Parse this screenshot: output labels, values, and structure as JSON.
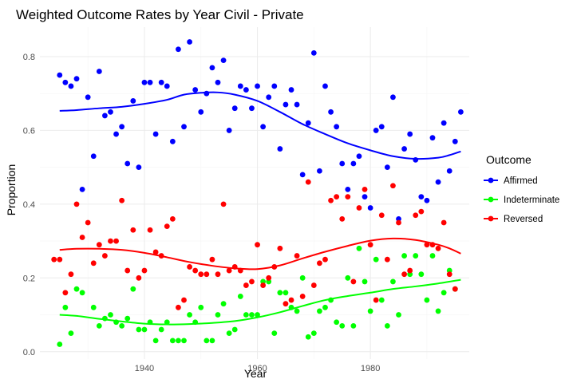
{
  "chart_data": {
    "type": "scatter",
    "title": "Weighted Outcome Rates by Year Civil - Private",
    "xlabel": "Year",
    "ylabel": "Proportion",
    "xlim": [
      1921.5,
      1997.5
    ],
    "ylim": [
      -0.02,
      0.88
    ],
    "x_ticks": [
      1940,
      1960,
      1980
    ],
    "x_tick_labels": [
      "1940",
      "1960",
      "1980"
    ],
    "y_ticks": [
      0.0,
      0.2,
      0.4,
      0.6,
      0.8
    ],
    "y_tick_labels": [
      "0.0",
      "0.2",
      "0.4",
      "0.6",
      "0.8"
    ],
    "grid": true,
    "legend": {
      "title": "Outcome",
      "position": "right"
    },
    "series": [
      {
        "name": "Affirmed",
        "color": "#0000ff",
        "points": [
          [
            1925,
            0.75
          ],
          [
            1926,
            0.73
          ],
          [
            1927,
            0.72
          ],
          [
            1928,
            0.74
          ],
          [
            1929,
            0.44
          ],
          [
            1930,
            0.69
          ],
          [
            1931,
            0.53
          ],
          [
            1932,
            0.76
          ],
          [
            1933,
            0.64
          ],
          [
            1934,
            0.65
          ],
          [
            1935,
            0.59
          ],
          [
            1936,
            0.61
          ],
          [
            1937,
            0.51
          ],
          [
            1938,
            0.68
          ],
          [
            1939,
            0.5
          ],
          [
            1940,
            0.73
          ],
          [
            1941,
            0.73
          ],
          [
            1942,
            0.59
          ],
          [
            1943,
            0.73
          ],
          [
            1944,
            0.72
          ],
          [
            1945,
            0.57
          ],
          [
            1946,
            0.82
          ],
          [
            1947,
            0.61
          ],
          [
            1948,
            0.84
          ],
          [
            1949,
            0.71
          ],
          [
            1950,
            0.65
          ],
          [
            1951,
            0.7
          ],
          [
            1952,
            0.77
          ],
          [
            1953,
            0.73
          ],
          [
            1954,
            0.79
          ],
          [
            1955,
            0.6
          ],
          [
            1956,
            0.66
          ],
          [
            1957,
            0.72
          ],
          [
            1958,
            0.71
          ],
          [
            1959,
            0.66
          ],
          [
            1960,
            0.72
          ],
          [
            1961,
            0.61
          ],
          [
            1962,
            0.69
          ],
          [
            1963,
            0.72
          ],
          [
            1964,
            0.55
          ],
          [
            1965,
            0.67
          ],
          [
            1966,
            0.71
          ],
          [
            1967,
            0.67
          ],
          [
            1968,
            0.48
          ],
          [
            1969,
            0.62
          ],
          [
            1970,
            0.81
          ],
          [
            1971,
            0.49
          ],
          [
            1972,
            0.72
          ],
          [
            1973,
            0.65
          ],
          [
            1974,
            0.61
          ],
          [
            1975,
            0.51
          ],
          [
            1976,
            0.44
          ],
          [
            1977,
            0.51
          ],
          [
            1978,
            0.53
          ],
          [
            1979,
            0.42
          ],
          [
            1980,
            0.39
          ],
          [
            1981,
            0.6
          ],
          [
            1982,
            0.61
          ],
          [
            1983,
            0.5
          ],
          [
            1984,
            0.69
          ],
          [
            1985,
            0.36
          ],
          [
            1986,
            0.55
          ],
          [
            1987,
            0.59
          ],
          [
            1988,
            0.52
          ],
          [
            1989,
            0.42
          ],
          [
            1990,
            0.41
          ],
          [
            1991,
            0.58
          ],
          [
            1992,
            0.46
          ],
          [
            1993,
            0.62
          ],
          [
            1994,
            0.49
          ],
          [
            1995,
            0.57
          ],
          [
            1996,
            0.65
          ]
        ],
        "smooth": [
          [
            1925,
            0.653
          ],
          [
            1928,
            0.655
          ],
          [
            1932,
            0.66
          ],
          [
            1936,
            0.664
          ],
          [
            1940,
            0.672
          ],
          [
            1944,
            0.683
          ],
          [
            1947,
            0.697
          ],
          [
            1950,
            0.702
          ],
          [
            1953,
            0.703
          ],
          [
            1956,
            0.697
          ],
          [
            1960,
            0.68
          ],
          [
            1964,
            0.65
          ],
          [
            1968,
            0.617
          ],
          [
            1972,
            0.59
          ],
          [
            1976,
            0.565
          ],
          [
            1980,
            0.546
          ],
          [
            1984,
            0.53
          ],
          [
            1988,
            0.523
          ],
          [
            1992,
            0.526
          ],
          [
            1994,
            0.533
          ],
          [
            1996,
            0.543
          ]
        ]
      },
      {
        "name": "Indeterminate",
        "color": "#00ff00",
        "points": [
          [
            1925,
            0.02
          ],
          [
            1926,
            0.12
          ],
          [
            1927,
            0.05
          ],
          [
            1928,
            0.17
          ],
          [
            1929,
            0.16
          ],
          [
            1931,
            0.12
          ],
          [
            1932,
            0.07
          ],
          [
            1933,
            0.09
          ],
          [
            1934,
            0.1
          ],
          [
            1935,
            0.08
          ],
          [
            1936,
            0.07
          ],
          [
            1937,
            0.09
          ],
          [
            1938,
            0.17
          ],
          [
            1939,
            0.06
          ],
          [
            1940,
            0.06
          ],
          [
            1941,
            0.08
          ],
          [
            1942,
            0.03
          ],
          [
            1943,
            0.06
          ],
          [
            1944,
            0.08
          ],
          [
            1945,
            0.03
          ],
          [
            1946,
            0.03
          ],
          [
            1947,
            0.03
          ],
          [
            1948,
            0.1
          ],
          [
            1949,
            0.08
          ],
          [
            1950,
            0.12
          ],
          [
            1951,
            0.03
          ],
          [
            1952,
            0.03
          ],
          [
            1953,
            0.1
          ],
          [
            1954,
            0.13
          ],
          [
            1955,
            0.05
          ],
          [
            1956,
            0.06
          ],
          [
            1957,
            0.15
          ],
          [
            1958,
            0.1
          ],
          [
            1959,
            0.1
          ],
          [
            1960,
            0.1
          ],
          [
            1961,
            0.19
          ],
          [
            1962,
            0.19
          ],
          [
            1963,
            0.05
          ],
          [
            1964,
            0.16
          ],
          [
            1965,
            0.16
          ],
          [
            1966,
            0.12
          ],
          [
            1967,
            0.11
          ],
          [
            1968,
            0.2
          ],
          [
            1969,
            0.04
          ],
          [
            1970,
            0.05
          ],
          [
            1971,
            0.11
          ],
          [
            1972,
            0.12
          ],
          [
            1973,
            0.14
          ],
          [
            1974,
            0.08
          ],
          [
            1975,
            0.07
          ],
          [
            1976,
            0.2
          ],
          [
            1977,
            0.07
          ],
          [
            1978,
            0.28
          ],
          [
            1979,
            0.19
          ],
          [
            1980,
            0.11
          ],
          [
            1981,
            0.25
          ],
          [
            1982,
            0.14
          ],
          [
            1983,
            0.07
          ],
          [
            1984,
            0.19
          ],
          [
            1985,
            0.1
          ],
          [
            1986,
            0.26
          ],
          [
            1987,
            0.21
          ],
          [
            1988,
            0.26
          ],
          [
            1989,
            0.21
          ],
          [
            1990,
            0.14
          ],
          [
            1991,
            0.26
          ],
          [
            1992,
            0.11
          ],
          [
            1993,
            0.16
          ],
          [
            1994,
            0.22
          ],
          [
            1995,
            0.17
          ]
        ],
        "smooth": [
          [
            1925,
            0.1
          ],
          [
            1928,
            0.097
          ],
          [
            1932,
            0.089
          ],
          [
            1936,
            0.082
          ],
          [
            1940,
            0.076
          ],
          [
            1944,
            0.074
          ],
          [
            1948,
            0.075
          ],
          [
            1952,
            0.078
          ],
          [
            1956,
            0.083
          ],
          [
            1960,
            0.093
          ],
          [
            1964,
            0.107
          ],
          [
            1968,
            0.124
          ],
          [
            1972,
            0.14
          ],
          [
            1976,
            0.151
          ],
          [
            1980,
            0.16
          ],
          [
            1984,
            0.17
          ],
          [
            1988,
            0.177
          ],
          [
            1992,
            0.185
          ],
          [
            1996,
            0.195
          ]
        ]
      },
      {
        "name": "Reversed",
        "color": "#ff0000",
        "points": [
          [
            1924,
            0.25
          ],
          [
            1925,
            0.25
          ],
          [
            1926,
            0.16
          ],
          [
            1927,
            0.21
          ],
          [
            1928,
            0.4
          ],
          [
            1929,
            0.31
          ],
          [
            1930,
            0.35
          ],
          [
            1931,
            0.24
          ],
          [
            1932,
            0.29
          ],
          [
            1933,
            0.26
          ],
          [
            1934,
            0.3
          ],
          [
            1935,
            0.3
          ],
          [
            1936,
            0.41
          ],
          [
            1937,
            0.22
          ],
          [
            1938,
            0.33
          ],
          [
            1939,
            0.2
          ],
          [
            1940,
            0.22
          ],
          [
            1941,
            0.33
          ],
          [
            1942,
            0.27
          ],
          [
            1943,
            0.26
          ],
          [
            1944,
            0.34
          ],
          [
            1945,
            0.36
          ],
          [
            1946,
            0.12
          ],
          [
            1947,
            0.14
          ],
          [
            1948,
            0.23
          ],
          [
            1949,
            0.22
          ],
          [
            1950,
            0.21
          ],
          [
            1951,
            0.21
          ],
          [
            1952,
            0.25
          ],
          [
            1953,
            0.21
          ],
          [
            1954,
            0.4
          ],
          [
            1955,
            0.22
          ],
          [
            1956,
            0.23
          ],
          [
            1957,
            0.22
          ],
          [
            1958,
            0.18
          ],
          [
            1959,
            0.19
          ],
          [
            1960,
            0.29
          ],
          [
            1961,
            0.18
          ],
          [
            1962,
            0.2
          ],
          [
            1963,
            0.23
          ],
          [
            1964,
            0.28
          ],
          [
            1965,
            0.13
          ],
          [
            1966,
            0.14
          ],
          [
            1967,
            0.26
          ],
          [
            1968,
            0.15
          ],
          [
            1969,
            0.46
          ],
          [
            1970,
            0.18
          ],
          [
            1971,
            0.24
          ],
          [
            1972,
            0.25
          ],
          [
            1973,
            0.41
          ],
          [
            1974,
            0.42
          ],
          [
            1975,
            0.36
          ],
          [
            1976,
            0.42
          ],
          [
            1977,
            0.19
          ],
          [
            1978,
            0.39
          ],
          [
            1979,
            0.44
          ],
          [
            1980,
            0.29
          ],
          [
            1981,
            0.14
          ],
          [
            1982,
            0.37
          ],
          [
            1983,
            0.25
          ],
          [
            1984,
            0.45
          ],
          [
            1985,
            0.35
          ],
          [
            1986,
            0.21
          ],
          [
            1987,
            0.22
          ],
          [
            1988,
            0.37
          ],
          [
            1989,
            0.38
          ],
          [
            1990,
            0.29
          ],
          [
            1991,
            0.29
          ],
          [
            1992,
            0.28
          ],
          [
            1993,
            0.35
          ],
          [
            1994,
            0.21
          ],
          [
            1995,
            0.17
          ]
        ],
        "smooth": [
          [
            1925,
            0.276
          ],
          [
            1928,
            0.279
          ],
          [
            1932,
            0.279
          ],
          [
            1936,
            0.276
          ],
          [
            1940,
            0.268
          ],
          [
            1944,
            0.256
          ],
          [
            1948,
            0.243
          ],
          [
            1952,
            0.233
          ],
          [
            1956,
            0.226
          ],
          [
            1960,
            0.224
          ],
          [
            1964,
            0.234
          ],
          [
            1968,
            0.253
          ],
          [
            1972,
            0.271
          ],
          [
            1976,
            0.287
          ],
          [
            1980,
            0.301
          ],
          [
            1984,
            0.307
          ],
          [
            1988,
            0.303
          ],
          [
            1992,
            0.29
          ],
          [
            1994,
            0.28
          ],
          [
            1996,
            0.266
          ]
        ]
      }
    ]
  }
}
